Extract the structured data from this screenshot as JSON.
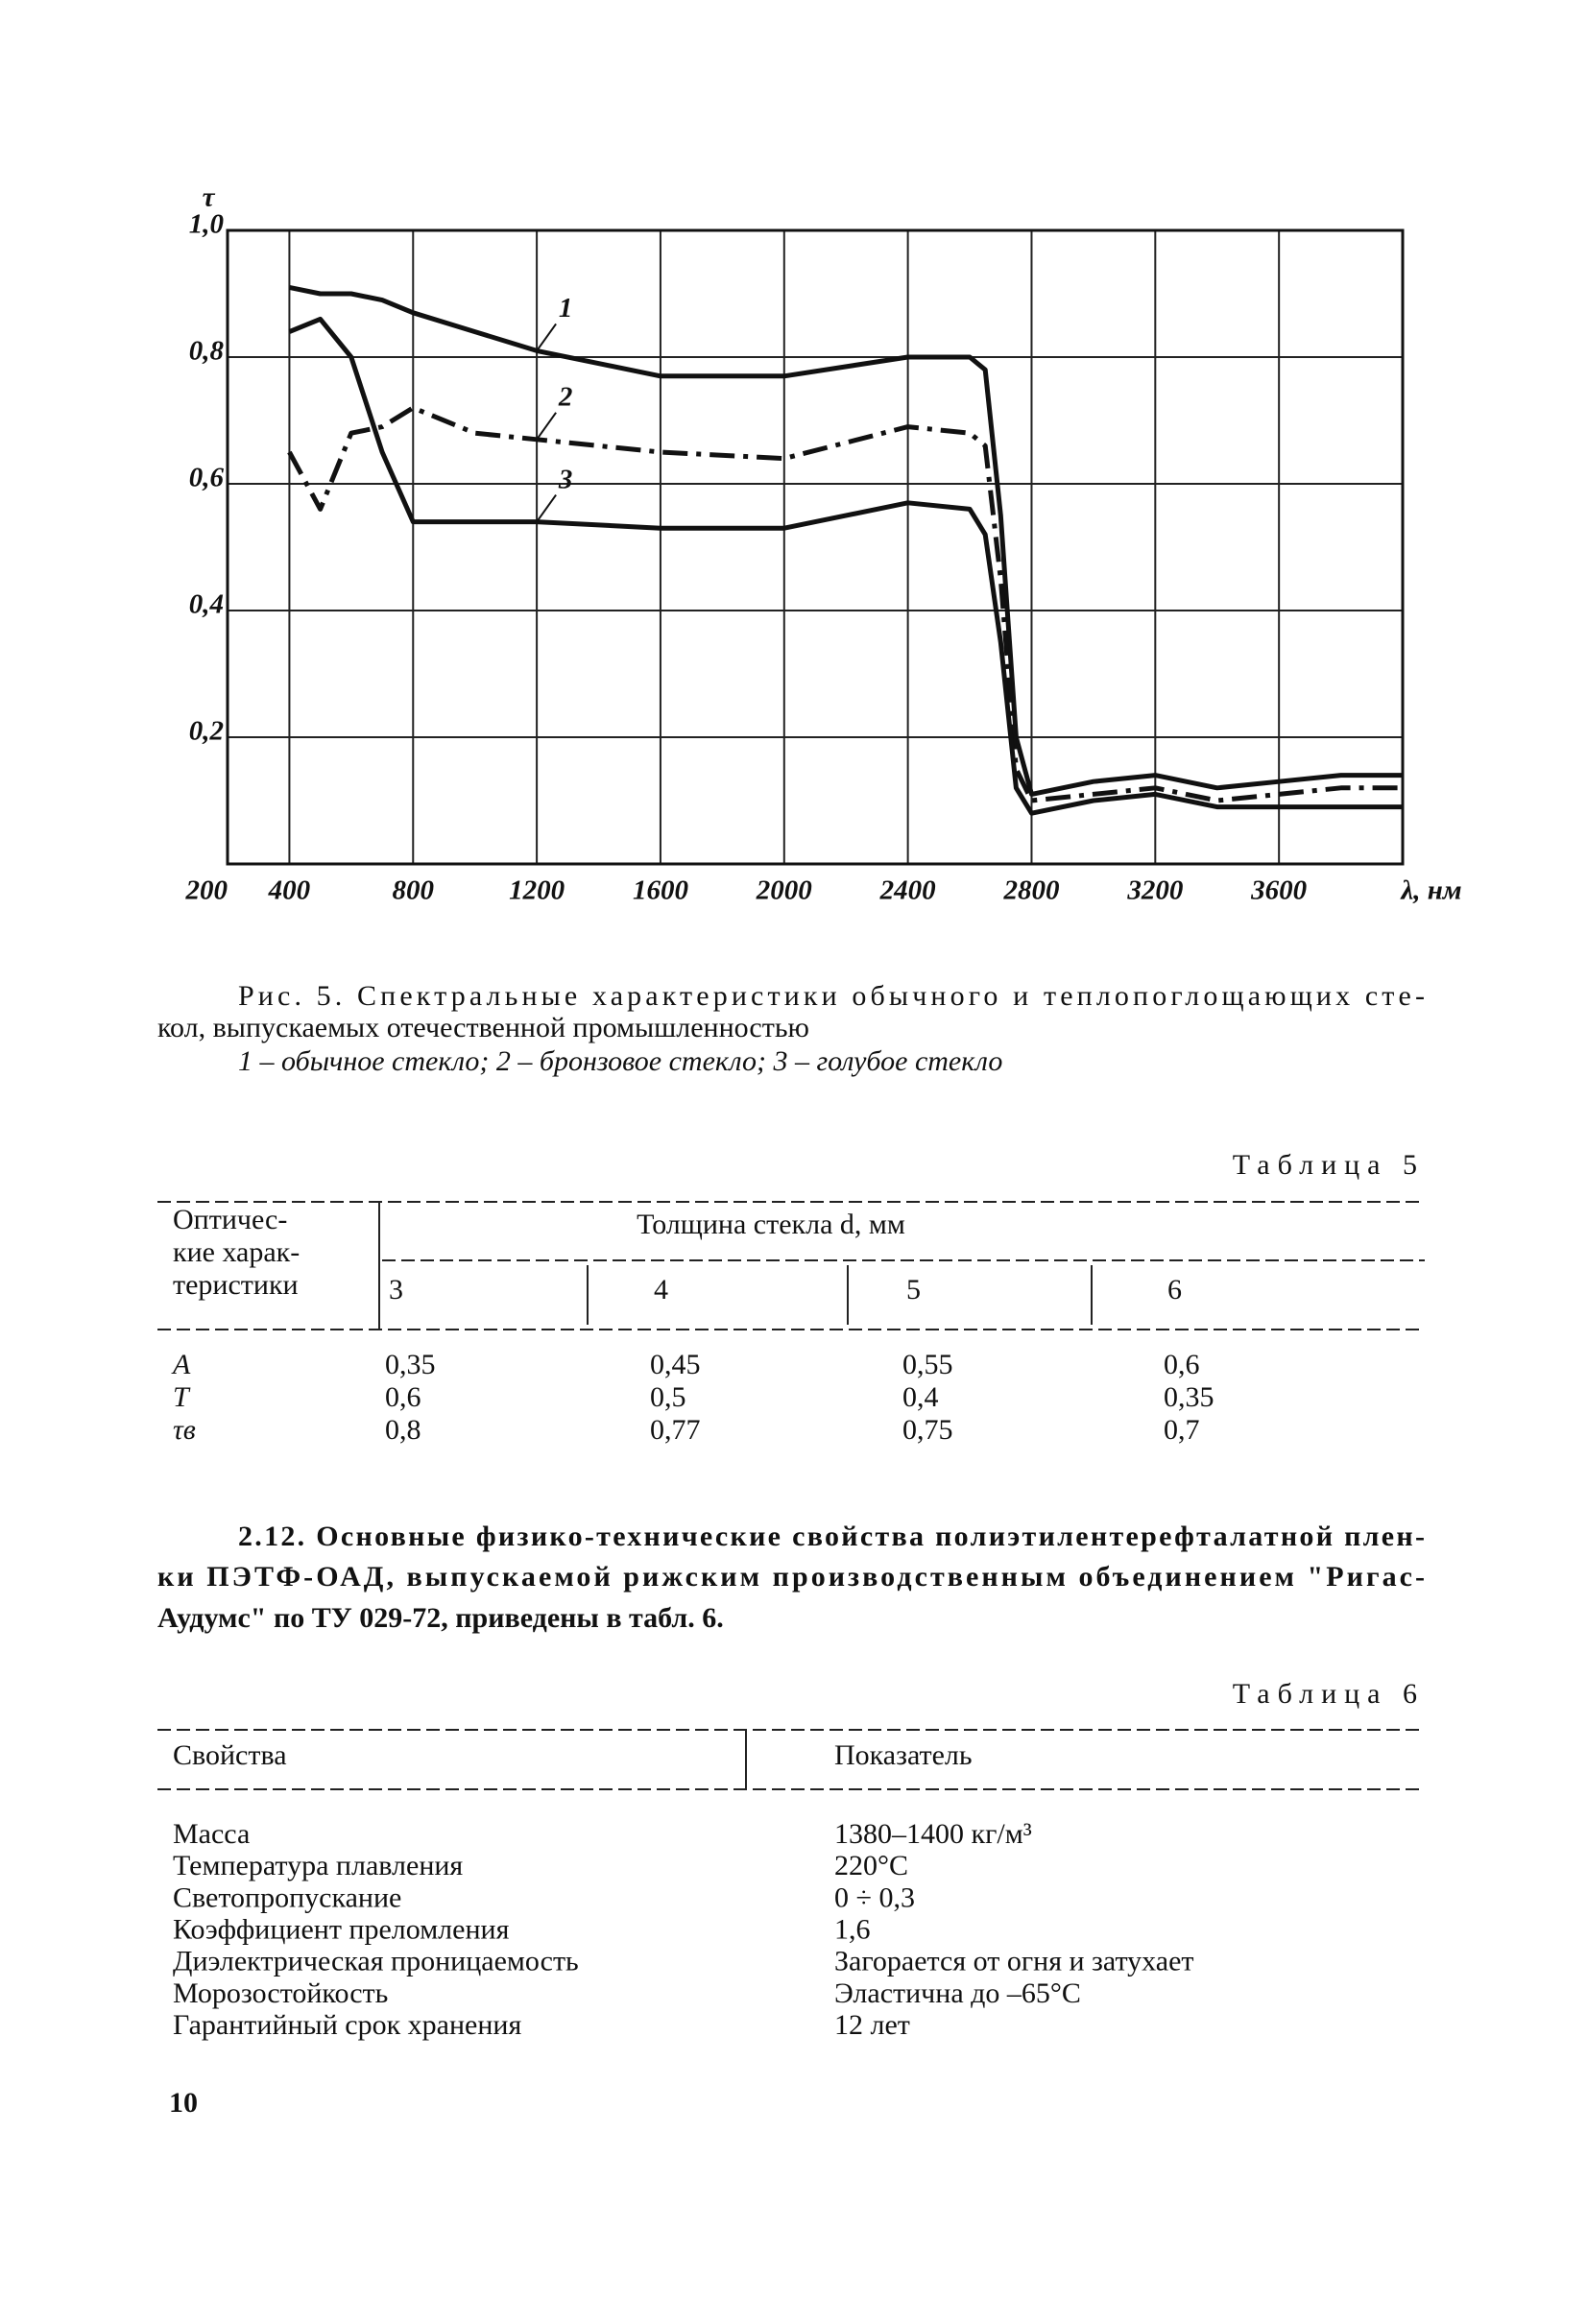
{
  "chart_data": {
    "type": "line",
    "y_label": "τ",
    "x_label": "λ, нм",
    "xlim": [
      200,
      4000
    ],
    "ylim": [
      0,
      1.0
    ],
    "xticks": [
      200,
      400,
      800,
      1200,
      1600,
      2000,
      2400,
      2800,
      3200,
      3600
    ],
    "yticks": [
      {
        "value": 0.2,
        "label": "0,2"
      },
      {
        "value": 0.4,
        "label": "0,4"
      },
      {
        "value": 0.6,
        "label": "0,6"
      },
      {
        "value": 0.8,
        "label": "0,8"
      },
      {
        "value": 1.0,
        "label": "1,0"
      }
    ],
    "grid": true,
    "x": [
      400,
      500,
      600,
      700,
      800,
      1000,
      1200,
      1600,
      2000,
      2400,
      2600,
      2650,
      2700,
      2750,
      2800,
      3000,
      3200,
      3400,
      3600,
      3800,
      4000
    ],
    "series": [
      {
        "name": "1",
        "color": "#111111",
        "dash": "solid",
        "values": [
          0.91,
          0.9,
          0.9,
          0.89,
          0.87,
          0.84,
          0.81,
          0.77,
          0.77,
          0.8,
          0.8,
          0.78,
          0.55,
          0.2,
          0.11,
          0.13,
          0.14,
          0.12,
          0.13,
          0.14,
          0.14
        ]
      },
      {
        "name": "2",
        "color": "#111111",
        "dash": "dashdot",
        "values": [
          0.65,
          0.56,
          0.68,
          0.69,
          0.72,
          0.68,
          0.67,
          0.65,
          0.64,
          0.69,
          0.68,
          0.66,
          0.45,
          0.15,
          0.1,
          0.11,
          0.12,
          0.1,
          0.11,
          0.12,
          0.12
        ]
      },
      {
        "name": "3",
        "color": "#111111",
        "dash": "solid",
        "values": [
          0.84,
          0.86,
          0.8,
          0.65,
          0.54,
          0.54,
          0.54,
          0.53,
          0.53,
          0.57,
          0.56,
          0.52,
          0.35,
          0.12,
          0.08,
          0.1,
          0.11,
          0.09,
          0.09,
          0.09,
          0.09
        ]
      }
    ]
  },
  "caption": {
    "lines": [
      "Рис. 5. Спектральные характеристики обычного и теплопоглощающих сте-",
      "кол, выпускаемых отечественной промышленностью"
    ],
    "legend": "1 – обычное стекло; 2 – бронзовое стекло; 3 – голубое стекло"
  },
  "table5": {
    "title": "Таблица 5",
    "row_header": [
      "Оптичес-",
      "кие харак-",
      "теристики"
    ],
    "group_header": "Толщина стекла d, мм",
    "columns": [
      "3",
      "4",
      "5",
      "6"
    ],
    "rows": [
      [
        "A",
        "0,35",
        "0,45",
        "0,55",
        "0,6"
      ],
      [
        "T",
        "0,6",
        "0,5",
        "0,4",
        "0,35"
      ],
      [
        "τв",
        "0,8",
        "0,77",
        "0,75",
        "0,7"
      ]
    ]
  },
  "paragraph": {
    "lines": [
      "2.12. Основные физико-технические свойства полиэтилентерефталатной плен-",
      "ки ПЭТФ-ОАД, выпускаемой рижским производственным объединением \"Ригас-",
      "Аудумс\" по ТУ 029-72, приведены в табл. 6."
    ]
  },
  "table6": {
    "title": "Таблица 6",
    "columns": [
      "Свойства",
      "Показатель"
    ],
    "rows": [
      [
        "Масса",
        "1380–1400 кг/м³"
      ],
      [
        "Температура плавления",
        "220°C"
      ],
      [
        "Светопропускание",
        "0 ÷ 0,3"
      ],
      [
        "Коэффициент преломления",
        "1,6"
      ],
      [
        "Диэлектрическая проницаемость",
        "Загорается от огня и затухает"
      ],
      [
        "Морозостойкость",
        "Эластична до –65°C"
      ],
      [
        "Гарантийный срок хранения",
        "12 лет"
      ]
    ]
  },
  "page_number": "10"
}
